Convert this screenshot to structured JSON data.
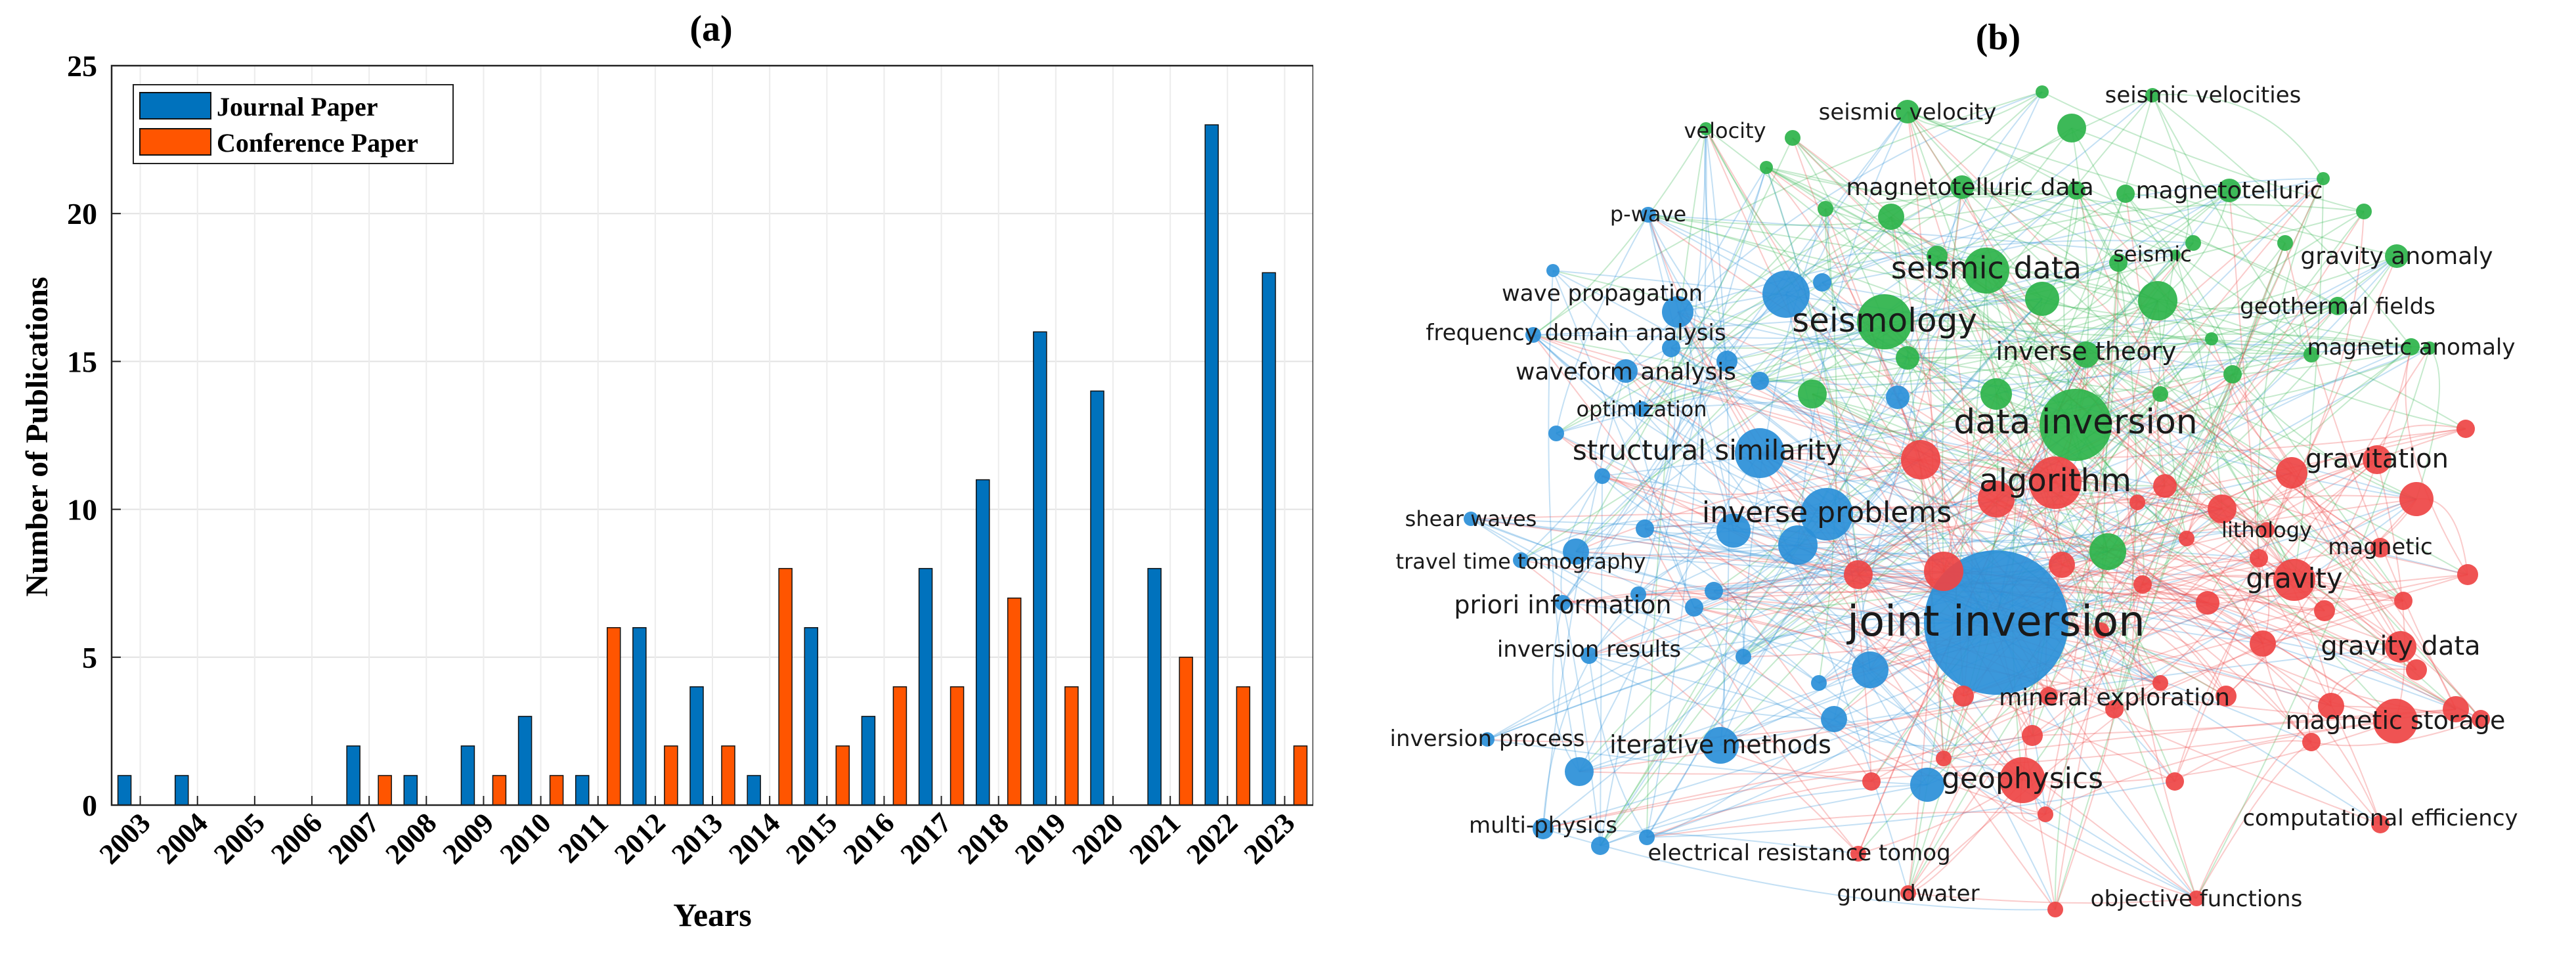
{
  "panel_a_label": "(a)",
  "panel_b_label": "(b)",
  "chart_data": [
    {
      "type": "bar",
      "title": "(a)",
      "xlabel": "Years",
      "ylabel": "Number of Publications",
      "ylim": [
        0,
        25
      ],
      "yticks": [
        0,
        5,
        10,
        15,
        20,
        25
      ],
      "grid": true,
      "legend_position": "top-left",
      "categories": [
        "2003",
        "2004",
        "2005",
        "2006",
        "2007",
        "2008",
        "2009",
        "2010",
        "2011",
        "2012",
        "2013",
        "2014",
        "2015",
        "2016",
        "2017",
        "2018",
        "2019",
        "2020",
        "2021",
        "2022",
        "2023"
      ],
      "series": [
        {
          "name": "Journal Paper",
          "color": "#0072BD",
          "values": [
            1,
            1,
            0,
            0,
            2,
            1,
            2,
            3,
            1,
            6,
            4,
            1,
            6,
            3,
            8,
            11,
            16,
            14,
            8,
            23,
            18
          ]
        },
        {
          "name": "Conference Paper",
          "color": "#FF5500",
          "values": [
            0,
            0,
            0,
            0,
            1,
            0,
            1,
            1,
            6,
            2,
            2,
            8,
            2,
            4,
            4,
            7,
            4,
            0,
            5,
            4,
            2
          ]
        }
      ]
    },
    {
      "type": "network",
      "title": "(b)",
      "clusters": [
        {
          "id": "green",
          "color": "#2DB34A"
        },
        {
          "id": "red",
          "color": "#EE4444"
        },
        {
          "id": "blue",
          "color": "#2A8FD8"
        }
      ],
      "labeled_nodes": [
        {
          "label": "seismic velocity",
          "cluster": "green"
        },
        {
          "label": "seismic velocities",
          "cluster": "green"
        },
        {
          "label": "velocity",
          "cluster": "green"
        },
        {
          "label": "magnetotelluric data",
          "cluster": "green"
        },
        {
          "label": "magnetotelluric",
          "cluster": "green"
        },
        {
          "label": "seismic data",
          "cluster": "green"
        },
        {
          "label": "seismic",
          "cluster": "green"
        },
        {
          "label": "gravity anomaly",
          "cluster": "green"
        },
        {
          "label": "seismology",
          "cluster": "green"
        },
        {
          "label": "geothermal fields",
          "cluster": "green"
        },
        {
          "label": "magnetic anomaly",
          "cluster": "green"
        },
        {
          "label": "inverse theory",
          "cluster": "green"
        },
        {
          "label": "data inversion",
          "cluster": "green"
        },
        {
          "label": "p-wave",
          "cluster": "blue"
        },
        {
          "label": "wave propagation",
          "cluster": "blue"
        },
        {
          "label": "frequency domain analysis",
          "cluster": "blue"
        },
        {
          "label": "waveform analysis",
          "cluster": "blue"
        },
        {
          "label": "optimization",
          "cluster": "blue"
        },
        {
          "label": "structural similarity",
          "cluster": "blue"
        },
        {
          "label": "inverse problems",
          "cluster": "blue"
        },
        {
          "label": "shear waves",
          "cluster": "blue"
        },
        {
          "label": "travel time tomography",
          "cluster": "blue"
        },
        {
          "label": "priori information",
          "cluster": "blue"
        },
        {
          "label": "joint inversion",
          "cluster": "blue"
        },
        {
          "label": "inversion results",
          "cluster": "blue"
        },
        {
          "label": "inversion process",
          "cluster": "blue"
        },
        {
          "label": "iterative methods",
          "cluster": "blue"
        },
        {
          "label": "multi-physics",
          "cluster": "blue"
        },
        {
          "label": "electrical resistance tomog",
          "cluster": "red"
        },
        {
          "label": "groundwater",
          "cluster": "red"
        },
        {
          "label": "objective functions",
          "cluster": "red"
        },
        {
          "label": "geophysics",
          "cluster": "red"
        },
        {
          "label": "mineral exploration",
          "cluster": "red"
        },
        {
          "label": "magnetic storage",
          "cluster": "red"
        },
        {
          "label": "computational efficiency",
          "cluster": "red"
        },
        {
          "label": "gravity data",
          "cluster": "red"
        },
        {
          "label": "gravity",
          "cluster": "red"
        },
        {
          "label": "magnetic",
          "cluster": "red"
        },
        {
          "label": "lithology",
          "cluster": "red"
        },
        {
          "label": "gravitation",
          "cluster": "red"
        },
        {
          "label": "algorithm",
          "cluster": "red"
        }
      ]
    }
  ]
}
